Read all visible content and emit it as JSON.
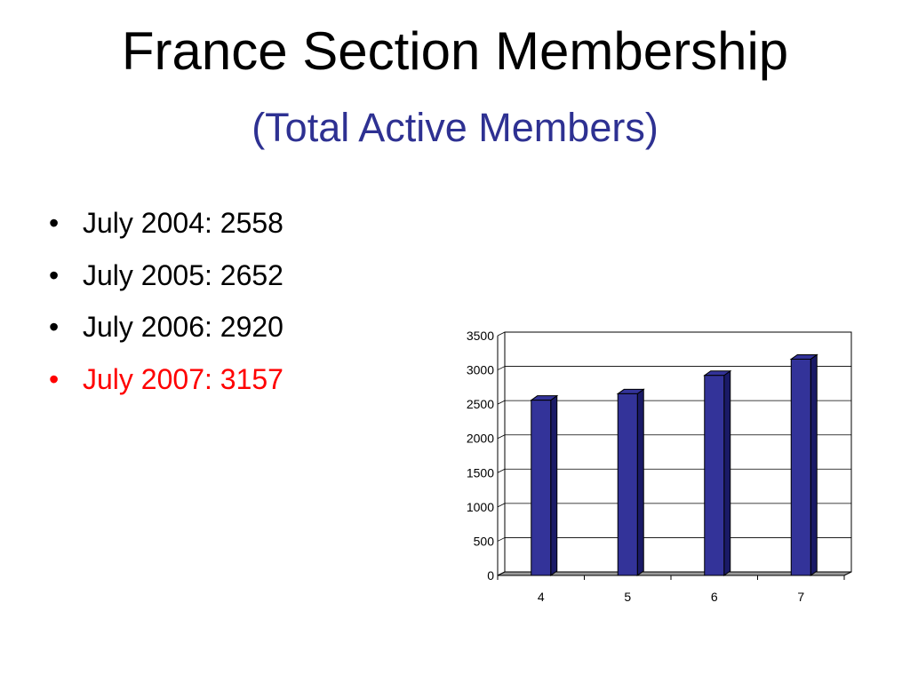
{
  "slide": {
    "title": "France Section Membership",
    "subtitle": "(Total Active Members)",
    "bullets": [
      {
        "text": "July 2004: 2558",
        "color": "#000000"
      },
      {
        "text": "July 2005: 2652",
        "color": "#000000"
      },
      {
        "text": "July 2006: 2920",
        "color": "#000000"
      },
      {
        "text": "July 2007: 3157",
        "color": "#ff0000"
      }
    ],
    "bullet_glyph": "•"
  },
  "chart_data": {
    "type": "bar",
    "style": "3d-column",
    "categories": [
      "4",
      "5",
      "6",
      "7"
    ],
    "values": [
      2558,
      2652,
      2920,
      3157
    ],
    "ylim": [
      0,
      3500
    ],
    "yticks": [
      0,
      500,
      1000,
      1500,
      2000,
      2500,
      3000,
      3500
    ],
    "grid": true,
    "legend": "none",
    "title": "",
    "xlabel": "",
    "ylabel": "",
    "colors": {
      "bar": "#333399",
      "bar_side": "#1a1a66",
      "floor": "#9a9a9a"
    }
  }
}
